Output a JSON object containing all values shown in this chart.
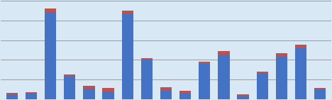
{
  "bars": [
    {
      "blue": 5,
      "red": 1.5
    },
    {
      "blue": 6,
      "red": 1.5
    },
    {
      "blue": 88,
      "red": 4
    },
    {
      "blue": 23,
      "red": 2
    },
    {
      "blue": 11,
      "red": 3
    },
    {
      "blue": 8,
      "red": 4
    },
    {
      "blue": 86,
      "red": 4
    },
    {
      "blue": 40,
      "red": 2
    },
    {
      "blue": 9,
      "red": 3.5
    },
    {
      "blue": 7,
      "red": 1.5
    },
    {
      "blue": 36,
      "red": 2.5
    },
    {
      "blue": 45,
      "red": 4
    },
    {
      "blue": 3,
      "red": 2.5
    },
    {
      "blue": 26,
      "red": 2
    },
    {
      "blue": 43,
      "red": 4
    },
    {
      "blue": 52,
      "red": 3.5
    },
    {
      "blue": 10,
      "red": 2
    }
  ],
  "blue_color": "#4472C4",
  "red_color": "#C0504D",
  "background_color": "#D9E8F5",
  "grid_color": "#808080",
  "ylim": [
    0,
    100
  ],
  "bar_width": 0.6
}
